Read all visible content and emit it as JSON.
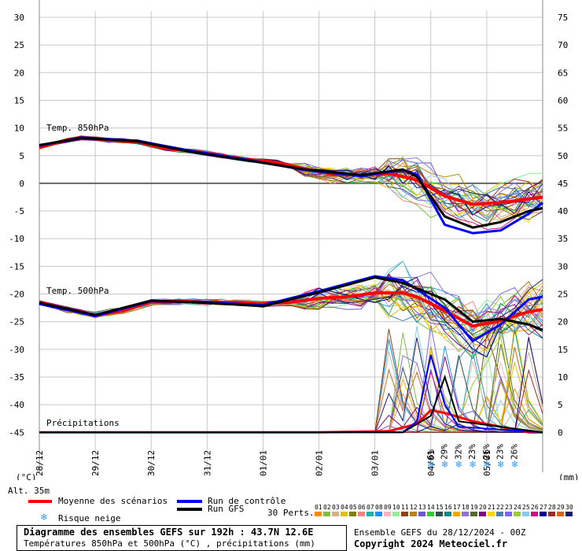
{
  "chart_data": {
    "type": "line",
    "title": "Diagramme des ensembles GEFS sur 192h : 43.7N 12.6E",
    "subtitle": "Températures 850hPa et 500hPa (°C) , précipitations (mm)",
    "run_info": "Ensemble GEFS du 28/12/2024 - 00Z",
    "copyright": "Copyright 2024 Meteociel.fr",
    "altitude": "Alt. 35m",
    "left_unit": "(°C)",
    "right_unit": "(mm)",
    "panel_labels": {
      "t850": "Temp. 850hPa",
      "t500": "Temp. 500hPa",
      "precip": "Précipitations"
    },
    "left_ticks": [
      30,
      25,
      20,
      15,
      10,
      5,
      0,
      -5,
      -10,
      -15,
      -20,
      -25,
      -30,
      -35,
      -40,
      -45
    ],
    "right_ticks": [
      75,
      70,
      65,
      60,
      55,
      50,
      45,
      40,
      35,
      30,
      25,
      20,
      15,
      10,
      5,
      0
    ],
    "x_labels": [
      "28/12",
      "29/12",
      "30/12",
      "31/12",
      "01/01",
      "02/01",
      "03/01",
      "04/01",
      "05/01"
    ],
    "x_range_hours": [
      0,
      192
    ],
    "ylim_celsius": [
      -45,
      30
    ],
    "ylim_mm": [
      0,
      75
    ],
    "grid": true,
    "series": [
      {
        "name": "Moyenne des scénarios",
        "color": "#ff0000",
        "t850": [
          [
            0,
            6.5
          ],
          [
            12,
            7.8
          ],
          [
            18,
            8.3
          ],
          [
            30,
            7.8
          ],
          [
            42,
            7.5
          ],
          [
            54,
            6.3
          ],
          [
            66,
            5.8
          ],
          [
            78,
            5
          ],
          [
            90,
            4.3
          ],
          [
            102,
            3.8
          ],
          [
            114,
            2.6
          ],
          [
            126,
            1.6
          ],
          [
            138,
            1.5
          ],
          [
            150,
            1.8
          ],
          [
            162,
            0.6
          ],
          [
            174,
            -2.3
          ],
          [
            186,
            -3.8
          ],
          [
            198,
            -3.5
          ],
          [
            210,
            -2.8
          ],
          [
            216,
            -2.5
          ]
        ],
        "t500": [
          [
            0,
            -21.5
          ],
          [
            12,
            -22.8
          ],
          [
            24,
            -23.8
          ],
          [
            36,
            -23
          ],
          [
            48,
            -21.5
          ],
          [
            60,
            -21.3
          ],
          [
            72,
            -21.5
          ],
          [
            84,
            -21.5
          ],
          [
            96,
            -21.8
          ],
          [
            108,
            -21.5
          ],
          [
            120,
            -20.8
          ],
          [
            132,
            -20.5
          ],
          [
            144,
            -19.8
          ],
          [
            156,
            -19.8
          ],
          [
            162,
            -20.5
          ],
          [
            174,
            -23
          ],
          [
            186,
            -25.8
          ],
          [
            198,
            -24.8
          ],
          [
            210,
            -23.2
          ],
          [
            216,
            -22.8
          ]
        ],
        "precip": [
          [
            0,
            0
          ],
          [
            120,
            0
          ],
          [
            150,
            0.2
          ],
          [
            162,
            1.5
          ],
          [
            168,
            4
          ],
          [
            174,
            3.5
          ],
          [
            186,
            2
          ],
          [
            198,
            1
          ],
          [
            210,
            0
          ],
          [
            216,
            0
          ]
        ]
      },
      {
        "name": "Run de contrôle",
        "color": "#0000ff",
        "t850": [
          [
            0,
            6.8
          ],
          [
            18,
            8.3
          ],
          [
            42,
            7.7
          ],
          [
            66,
            5.8
          ],
          [
            90,
            4.2
          ],
          [
            114,
            2.4
          ],
          [
            138,
            1.3
          ],
          [
            156,
            2.4
          ],
          [
            162,
            1.6
          ],
          [
            174,
            -7.5
          ],
          [
            186,
            -9
          ],
          [
            198,
            -8.5
          ],
          [
            210,
            -5.5
          ],
          [
            216,
            -3.5
          ]
        ],
        "t500": [
          [
            0,
            -21.8
          ],
          [
            24,
            -24
          ],
          [
            48,
            -21.3
          ],
          [
            72,
            -21.5
          ],
          [
            96,
            -22
          ],
          [
            120,
            -19.5
          ],
          [
            144,
            -16.8
          ],
          [
            156,
            -17.5
          ],
          [
            174,
            -22.5
          ],
          [
            186,
            -28.5
          ],
          [
            198,
            -25.5
          ],
          [
            210,
            -21
          ],
          [
            216,
            -20.5
          ]
        ],
        "precip": [
          [
            0,
            0
          ],
          [
            156,
            0
          ],
          [
            162,
            2
          ],
          [
            168,
            14
          ],
          [
            174,
            5
          ],
          [
            180,
            1
          ],
          [
            216,
            0
          ]
        ]
      },
      {
        "name": "Run GFS",
        "color": "#000000",
        "t850": [
          [
            0,
            6.9
          ],
          [
            18,
            8.2
          ],
          [
            42,
            7.6
          ],
          [
            66,
            5.6
          ],
          [
            90,
            4.1
          ],
          [
            114,
            2.5
          ],
          [
            138,
            1.5
          ],
          [
            156,
            2.5
          ],
          [
            162,
            1.2
          ],
          [
            174,
            -6
          ],
          [
            186,
            -8
          ],
          [
            198,
            -7
          ],
          [
            210,
            -5
          ],
          [
            216,
            -4.5
          ]
        ],
        "t500": [
          [
            0,
            -21.6
          ],
          [
            24,
            -23.8
          ],
          [
            48,
            -21.2
          ],
          [
            72,
            -21.6
          ],
          [
            96,
            -22.2
          ],
          [
            120,
            -19.7
          ],
          [
            144,
            -17
          ],
          [
            156,
            -18
          ],
          [
            174,
            -21
          ],
          [
            186,
            -25
          ],
          [
            198,
            -24.5
          ],
          [
            210,
            -25.5
          ],
          [
            216,
            -26.5
          ]
        ],
        "precip": [
          [
            0,
            0
          ],
          [
            156,
            0
          ],
          [
            168,
            3
          ],
          [
            174,
            10
          ],
          [
            180,
            2
          ],
          [
            216,
            0
          ]
        ]
      }
    ],
    "snow_risk": [
      {
        "hour": 168,
        "pct": "6%"
      },
      {
        "hour": 174,
        "pct": "29%"
      },
      {
        "hour": 180,
        "pct": "32%"
      },
      {
        "hour": 186,
        "pct": "23%"
      },
      {
        "hour": 192,
        "pct": "26%"
      },
      {
        "hour": 198,
        "pct": "23%"
      },
      {
        "hour": 204,
        "pct": "26%"
      }
    ]
  },
  "legend": {
    "mean": "Moyenne des scénarios",
    "control": "Run de contrôle",
    "gfs": "Run GFS",
    "snow": "Risque neige",
    "perts": "30 Perts.",
    "snow_icon": "snowflake-icon"
  },
  "perturbations": [
    {
      "n": "01",
      "c": "#ff8c00"
    },
    {
      "n": "02",
      "c": "#7fbf3f"
    },
    {
      "n": "03",
      "c": "#d2b48c"
    },
    {
      "n": "04",
      "c": "#e0c000"
    },
    {
      "n": "05",
      "c": "#808000"
    },
    {
      "n": "06",
      "c": "#ff8080"
    },
    {
      "n": "07",
      "c": "#20b2aa"
    },
    {
      "n": "08",
      "c": "#1e90ff"
    },
    {
      "n": "09",
      "c": "#ffb6c1"
    },
    {
      "n": "10",
      "c": "#90ee90"
    },
    {
      "n": "11",
      "c": "#8b4513"
    },
    {
      "n": "12",
      "c": "#b8860b"
    },
    {
      "n": "13",
      "c": "#6a5acd"
    },
    {
      "n": "14",
      "c": "#32cd32"
    },
    {
      "n": "15",
      "c": "#2f4f4f"
    },
    {
      "n": "16",
      "c": "#008b8b"
    },
    {
      "n": "17",
      "c": "#ffa500"
    },
    {
      "n": "18",
      "c": "#9370db"
    },
    {
      "n": "19",
      "c": "#556b2f"
    },
    {
      "n": "20",
      "c": "#800080"
    },
    {
      "n": "21",
      "c": "#ffd700"
    },
    {
      "n": "22",
      "c": "#4682b4"
    },
    {
      "n": "23",
      "c": "#7b68ee"
    },
    {
      "n": "24",
      "c": "#9acd32"
    },
    {
      "n": "25",
      "c": "#87ceeb"
    },
    {
      "n": "26",
      "c": "#c71585"
    },
    {
      "n": "27",
      "c": "#00008b"
    },
    {
      "n": "28",
      "c": "#a52a2a"
    },
    {
      "n": "29",
      "c": "#d2691e"
    },
    {
      "n": "30",
      "c": "#191970"
    }
  ]
}
